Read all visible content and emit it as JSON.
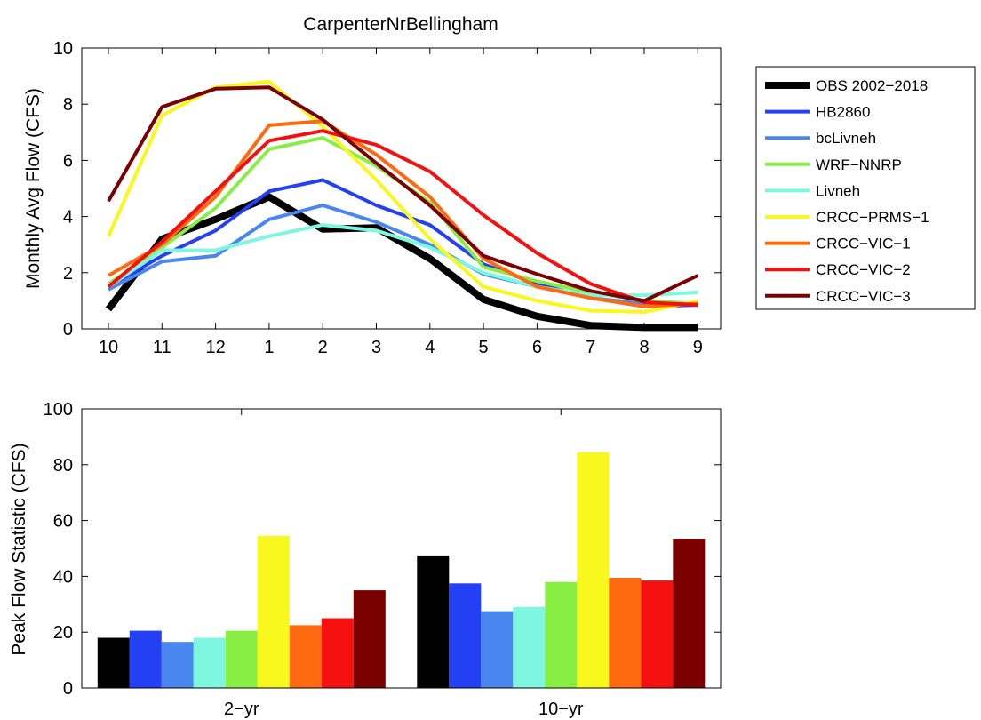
{
  "chart_data": [
    {
      "type": "line",
      "title": "CarpenterNrBellingham",
      "xlabel": "",
      "ylabel": "Monthly Avg Flow (CFS)",
      "categories": [
        "10",
        "11",
        "12",
        "1",
        "2",
        "3",
        "4",
        "5",
        "6",
        "7",
        "8",
        "9"
      ],
      "ylim": [
        0,
        10
      ],
      "yticks": [
        "0",
        "2",
        "4",
        "6",
        "8",
        "10"
      ],
      "grid": false,
      "legend_position": "outside-right",
      "series": [
        {
          "name": "OBS 2002−2018",
          "color": "#000000",
          "values": [
            0.7,
            3.2,
            3.9,
            4.7,
            3.55,
            3.6,
            2.5,
            1.05,
            0.45,
            0.12,
            0.05,
            0.05
          ]
        },
        {
          "name": "HB2860",
          "color": "#2340f5",
          "values": [
            1.5,
            2.6,
            3.5,
            4.9,
            5.3,
            4.4,
            3.7,
            2.3,
            1.6,
            1.1,
            0.8,
            0.85
          ]
        },
        {
          "name": "bcLivneh",
          "color": "#4a86f0",
          "values": [
            1.4,
            2.4,
            2.6,
            3.9,
            4.4,
            3.8,
            3.0,
            1.95,
            1.5,
            1.1,
            0.9,
            0.9
          ]
        },
        {
          "name": "WRF−NNRP",
          "color": "#88ee44",
          "values": [
            1.6,
            2.9,
            4.3,
            6.4,
            6.8,
            5.8,
            4.5,
            2.2,
            1.7,
            1.3,
            1.0,
            0.9
          ]
        },
        {
          "name": "Livneh",
          "color": "#7ef7e0",
          "values": [
            1.5,
            2.8,
            2.8,
            3.3,
            3.7,
            3.5,
            2.9,
            2.0,
            1.5,
            1.2,
            1.2,
            1.3
          ]
        },
        {
          "name": "CRCC−PRMS−1",
          "color": "#f8f81e",
          "values": [
            3.3,
            7.6,
            8.6,
            8.8,
            7.2,
            5.3,
            3.2,
            1.5,
            1.0,
            0.65,
            0.6,
            1.0
          ]
        },
        {
          "name": "CRCC−VIC−1",
          "color": "#ff6a10",
          "values": [
            1.9,
            3.0,
            4.7,
            7.25,
            7.4,
            6.2,
            4.7,
            2.5,
            1.5,
            1.1,
            0.8,
            0.9
          ]
        },
        {
          "name": "CRCC−VIC−2",
          "color": "#f51010",
          "values": [
            1.5,
            3.1,
            4.9,
            6.7,
            7.05,
            6.55,
            5.6,
            4.05,
            2.7,
            1.6,
            0.95,
            0.85
          ]
        },
        {
          "name": "CRCC−VIC−3",
          "color": "#7a0000",
          "values": [
            4.55,
            7.9,
            8.55,
            8.6,
            7.45,
            5.9,
            4.4,
            2.6,
            1.95,
            1.35,
            1.0,
            1.9
          ]
        }
      ]
    },
    {
      "type": "bar",
      "title": "",
      "xlabel": "",
      "ylabel": "Peak Flow Statistic (CFS)",
      "categories": [
        "2−yr",
        "10−yr"
      ],
      "ylim": [
        0,
        100
      ],
      "yticks": [
        "0",
        "20",
        "40",
        "60",
        "80",
        "100"
      ],
      "grid": false,
      "series": [
        {
          "color": "#000000",
          "values": [
            18,
            47.5
          ]
        },
        {
          "color": "#2340f5",
          "values": [
            20.5,
            37.5
          ]
        },
        {
          "color": "#4a86f0",
          "values": [
            16.5,
            27.5
          ]
        },
        {
          "color": "#7ef7e0",
          "values": [
            18,
            29
          ]
        },
        {
          "color": "#88ee44",
          "values": [
            20.5,
            38
          ]
        },
        {
          "color": "#f8f81e",
          "values": [
            54.5,
            84.5
          ]
        },
        {
          "color": "#ff6a10",
          "values": [
            22.5,
            39.5
          ]
        },
        {
          "color": "#f51010",
          "values": [
            25,
            38.5
          ]
        },
        {
          "color": "#7a0000",
          "values": [
            35,
            53.5
          ]
        }
      ]
    }
  ]
}
